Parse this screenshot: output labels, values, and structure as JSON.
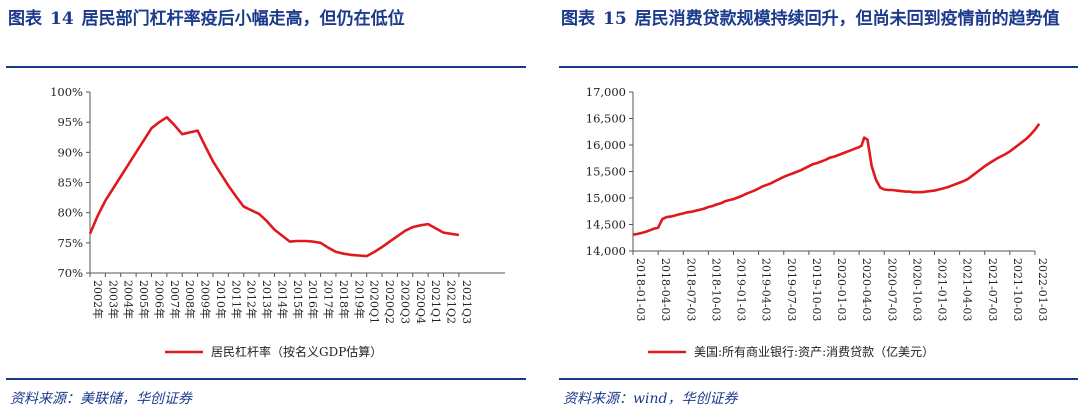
{
  "charts": [
    {
      "figure_label": "图表",
      "figure_number": "14",
      "figure_title": "居民部门杠杆率疫后小幅走高，但仍在低位",
      "source": "资料来源：美联储，华创证券"
    },
    {
      "figure_label": "图表",
      "figure_number": "15",
      "figure_title": "居民消费贷款规模持续回升，但尚未回到疫情前的趋势值",
      "source": "资料来源：wind，华创证券"
    }
  ],
  "chart_data": [
    {
      "type": "line",
      "title": "居民部门杠杆率疫后小幅走高，但仍在低位",
      "series_name": "居民杠杆率（按名义GDP估算）",
      "ylim": [
        0.7,
        1.0
      ],
      "yticks": [
        "70%",
        "75%",
        "80%",
        "85%",
        "90%",
        "95%",
        "100%"
      ],
      "yticks_values": [
        0.7,
        0.75,
        0.8,
        0.85,
        0.9,
        0.95,
        1.0
      ],
      "xlim": [
        0,
        27
      ],
      "tick_labels": [
        "2002年",
        "2003年",
        "2004年",
        "2005年",
        "2006年",
        "2007年",
        "2008年",
        "2009年",
        "2010年",
        "2011年",
        "2012年",
        "2013年",
        "2014年",
        "2015年",
        "2016年",
        "2017年",
        "2018年",
        "2019年",
        "2020Q1",
        "2020Q2",
        "2020Q3",
        "2020Q4",
        "2021Q1",
        "2021Q2",
        "2021Q3"
      ],
      "tick_positions": [
        0,
        1,
        2,
        3,
        4,
        5,
        6,
        7,
        8,
        9,
        10,
        11,
        12,
        13,
        14,
        15,
        16,
        17,
        18,
        19,
        20,
        21,
        22,
        23,
        24
      ],
      "x": [
        0,
        0.5,
        1,
        1.5,
        2,
        2.5,
        3,
        3.5,
        4,
        4.5,
        5,
        5.5,
        6,
        6.5,
        7,
        7.5,
        8,
        8.5,
        9,
        9.5,
        10,
        10.5,
        11,
        11.5,
        12,
        12.5,
        13,
        13.5,
        14,
        14.5,
        15,
        15.5,
        16,
        16.5,
        17,
        17.5,
        18,
        18.5,
        19,
        19.5,
        20,
        20.5,
        21,
        21.5,
        22,
        22.5,
        23,
        23.5,
        24
      ],
      "values": [
        0.765,
        0.795,
        0.82,
        0.84,
        0.86,
        0.88,
        0.9,
        0.92,
        0.94,
        0.95,
        0.958,
        0.945,
        0.93,
        0.933,
        0.936,
        0.91,
        0.885,
        0.865,
        0.845,
        0.827,
        0.81,
        0.804,
        0.798,
        0.786,
        0.772,
        0.762,
        0.752,
        0.753,
        0.753,
        0.752,
        0.75,
        0.742,
        0.735,
        0.732,
        0.73,
        0.729,
        0.728,
        0.735,
        0.743,
        0.752,
        0.761,
        0.77,
        0.776,
        0.779,
        0.781,
        0.774,
        0.767,
        0.765,
        0.763
      ]
    },
    {
      "type": "line",
      "title": "居民消费贷款规模持续回升，但尚未回到疫情前的趋势值",
      "series_name": "美国:所有商业银行:资产:消费贷款（亿美元）",
      "ylim": [
        14000,
        17000
      ],
      "yticks": [
        "14,000",
        "14,500",
        "15,000",
        "15,500",
        "16,000",
        "16,500",
        "17,000"
      ],
      "yticks_values": [
        14000,
        14500,
        15000,
        15500,
        16000,
        16500,
        17000
      ],
      "xlim": [
        0,
        48
      ],
      "tick_labels": [
        "2018-01-03",
        "2018-04-03",
        "2018-07-03",
        "2018-10-03",
        "2019-01-03",
        "2019-04-03",
        "2019-07-03",
        "2019-10-03",
        "2020-01-03",
        "2020-04-03",
        "2020-07-03",
        "2020-10-03",
        "2021-01-03",
        "2021-04-03",
        "2021-07-03",
        "2021-10-03",
        "2022-01-03"
      ],
      "tick_positions": [
        0,
        3,
        6,
        9,
        12,
        15,
        18,
        21,
        24,
        27,
        30,
        33,
        36,
        39,
        42,
        45,
        48
      ],
      "x": [
        0,
        0.5,
        1,
        1.5,
        2,
        2.5,
        3,
        3.5,
        4,
        4.5,
        5,
        5.5,
        6,
        6.5,
        7,
        7.5,
        8,
        8.5,
        9,
        9.5,
        10,
        10.5,
        11,
        11.5,
        12,
        12.5,
        13,
        13.5,
        14,
        14.5,
        15,
        15.5,
        16,
        16.5,
        17,
        17.5,
        18,
        18.5,
        19,
        19.5,
        20,
        20.5,
        21,
        21.5,
        22,
        22.5,
        23,
        23.5,
        24,
        24.5,
        25,
        25.5,
        26,
        26.5,
        27,
        27.3,
        27.6,
        28,
        28.5,
        29,
        29.5,
        30,
        30.5,
        31,
        31.5,
        32,
        32.5,
        33,
        33.5,
        34,
        34.5,
        35,
        35.5,
        36,
        36.5,
        37,
        37.5,
        38,
        38.5,
        39,
        39.5,
        40,
        40.5,
        41,
        41.5,
        42,
        42.5,
        43,
        43.5,
        44,
        44.5,
        45,
        45.5,
        46,
        46.5,
        47,
        47.5,
        48,
        48.5
      ],
      "values": [
        14310,
        14320,
        14340,
        14360,
        14390,
        14420,
        14440,
        14600,
        14640,
        14650,
        14670,
        14690,
        14710,
        14730,
        14740,
        14760,
        14780,
        14800,
        14830,
        14850,
        14880,
        14900,
        14940,
        14960,
        14980,
        15010,
        15040,
        15080,
        15110,
        15140,
        15180,
        15220,
        15250,
        15280,
        15320,
        15360,
        15400,
        15430,
        15460,
        15490,
        15520,
        15560,
        15600,
        15640,
        15660,
        15690,
        15720,
        15760,
        15780,
        15810,
        15840,
        15870,
        15900,
        15930,
        15960,
        15990,
        16140,
        16100,
        15600,
        15350,
        15200,
        15160,
        15150,
        15150,
        15140,
        15130,
        15120,
        15120,
        15110,
        15110,
        15110,
        15120,
        15130,
        15140,
        15160,
        15180,
        15200,
        15230,
        15260,
        15290,
        15320,
        15360,
        15420,
        15480,
        15540,
        15600,
        15650,
        15700,
        15750,
        15790,
        15830,
        15880,
        15940,
        16000,
        16060,
        16120,
        16200,
        16290,
        16400
      ]
    }
  ]
}
